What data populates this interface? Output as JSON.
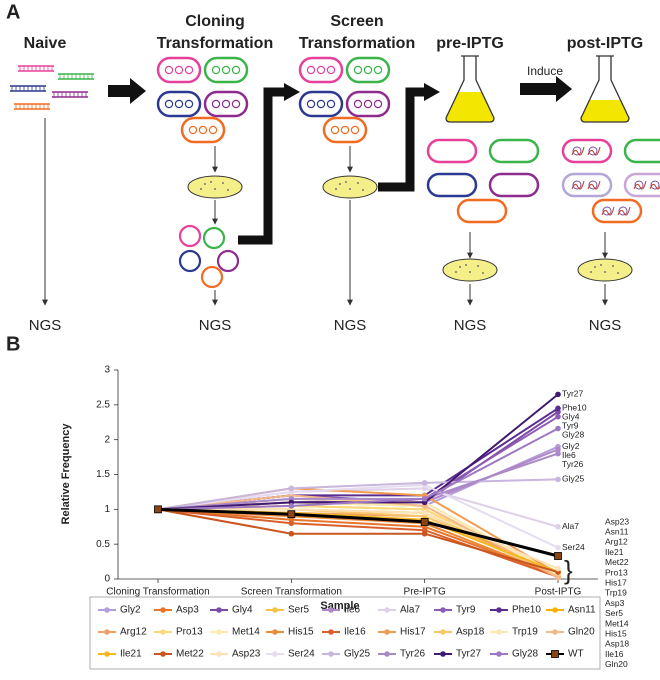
{
  "panel_a": {
    "label": "A",
    "naive": "Naive",
    "cloning": [
      "Cloning",
      "Transformation"
    ],
    "screen": [
      "Screen",
      "Transformation"
    ],
    "pre": "pre-IPTG",
    "post": "post-IPTG",
    "induce": "Induce",
    "ngs": [
      "NGS",
      "NGS",
      "NGS",
      "NGS",
      "NGS"
    ]
  },
  "chart_data": {
    "type": "line",
    "panel_label": "B",
    "xlabel": "Sample",
    "ylabel": "Relative Frequency",
    "categories": [
      "Cloning Transformation",
      "Screen Transformation",
      "Pre-IPTG",
      "Post-IPTG"
    ],
    "ylim": [
      0,
      3
    ],
    "yticks": [
      0,
      0.5,
      1,
      1.5,
      2,
      2.5,
      3
    ],
    "series": [
      {
        "name": "Gly2",
        "color": "#b39ddb",
        "marker": "circle",
        "values": [
          1,
          1.1,
          1.05,
          1.9
        ]
      },
      {
        "name": "Asp3",
        "color": "#e8772e",
        "marker": "circle",
        "values": [
          1,
          0.85,
          0.75,
          0.05
        ]
      },
      {
        "name": "Gly4",
        "color": "#7b4ba6",
        "marker": "circle",
        "values": [
          1,
          1.2,
          1.1,
          2.4
        ]
      },
      {
        "name": "Ser5",
        "color": "#f6c244",
        "marker": "circle",
        "values": [
          1,
          1.05,
          1.0,
          0.05
        ]
      },
      {
        "name": "Ile6",
        "color": "#b088c8",
        "marker": "circle",
        "values": [
          1,
          1.15,
          1.1,
          1.86
        ]
      },
      {
        "name": "Ala7",
        "color": "#ddd0e8",
        "marker": "circle",
        "values": [
          1,
          1.25,
          1.3,
          0.75
        ]
      },
      {
        "name": "Tyr9",
        "color": "#8e5bb5",
        "marker": "circle",
        "values": [
          1,
          1.1,
          1.15,
          2.33
        ]
      },
      {
        "name": "Phe10",
        "color": "#5b2c8f",
        "marker": "circle",
        "values": [
          1,
          1.2,
          1.2,
          2.45
        ]
      },
      {
        "name": "Asn11",
        "color": "#f4b400",
        "marker": "circle",
        "values": [
          1,
          1.0,
          0.95,
          0.1
        ]
      },
      {
        "name": "Arg12",
        "color": "#f0a060",
        "marker": "circle",
        "values": [
          1,
          0.95,
          0.9,
          0.1
        ]
      },
      {
        "name": "Pro13",
        "color": "#fbd97a",
        "marker": "circle",
        "values": [
          1,
          1.05,
          1.0,
          0.08
        ]
      },
      {
        "name": "Met14",
        "color": "#fde9a8",
        "marker": "circle",
        "values": [
          1,
          1.1,
          1.05,
          0.05
        ]
      },
      {
        "name": "His15",
        "color": "#ec8a3a",
        "marker": "circle",
        "values": [
          1,
          0.9,
          0.8,
          0.05
        ]
      },
      {
        "name": "Ile16",
        "color": "#d9602a",
        "marker": "circle",
        "values": [
          1,
          0.8,
          0.7,
          0.03
        ]
      },
      {
        "name": "His17",
        "color": "#f29a4e",
        "marker": "circle",
        "values": [
          1,
          1.3,
          1.2,
          0.08
        ]
      },
      {
        "name": "Asp18",
        "color": "#fcc66a",
        "marker": "circle",
        "values": [
          1,
          1.0,
          0.9,
          0.05
        ]
      },
      {
        "name": "Trp19",
        "color": "#fde7b0",
        "marker": "circle",
        "values": [
          1,
          1.15,
          1.1,
          0.06
        ]
      },
      {
        "name": "Gln20",
        "color": "#f5b88a",
        "marker": "circle",
        "values": [
          1,
          1.2,
          1.05,
          0.02
        ]
      },
      {
        "name": "Ile21",
        "color": "#f5b820",
        "marker": "circle",
        "values": [
          1,
          0.95,
          0.85,
          0.1
        ]
      },
      {
        "name": "Met22",
        "color": "#c9561e",
        "marker": "circle",
        "values": [
          1,
          0.65,
          0.65,
          0.1
        ]
      },
      {
        "name": "Asp23",
        "color": "#fde2b8",
        "marker": "circle",
        "values": [
          1,
          1.0,
          0.95,
          0.15
        ]
      },
      {
        "name": "Ser24",
        "color": "#e5dcef",
        "marker": "circle",
        "values": [
          1,
          1.25,
          1.35,
          0.45
        ]
      },
      {
        "name": "Gly25",
        "color": "#c8b6dc",
        "marker": "circle",
        "values": [
          1,
          1.3,
          1.38,
          1.43
        ]
      },
      {
        "name": "Tyr26",
        "color": "#a98ac8",
        "marker": "circle",
        "values": [
          1,
          1.15,
          1.15,
          1.8
        ]
      },
      {
        "name": "Tyr27",
        "color": "#3f1a70",
        "marker": "circle",
        "values": [
          1,
          1.1,
          1.1,
          2.65
        ]
      },
      {
        "name": "Gly28",
        "color": "#9e78c4",
        "marker": "circle",
        "values": [
          1,
          1.05,
          1.15,
          2.16
        ]
      },
      {
        "name": "WT",
        "color": "#000000",
        "marker": "square",
        "values": [
          1,
          0.93,
          0.82,
          0.33
        ]
      }
    ]
  }
}
